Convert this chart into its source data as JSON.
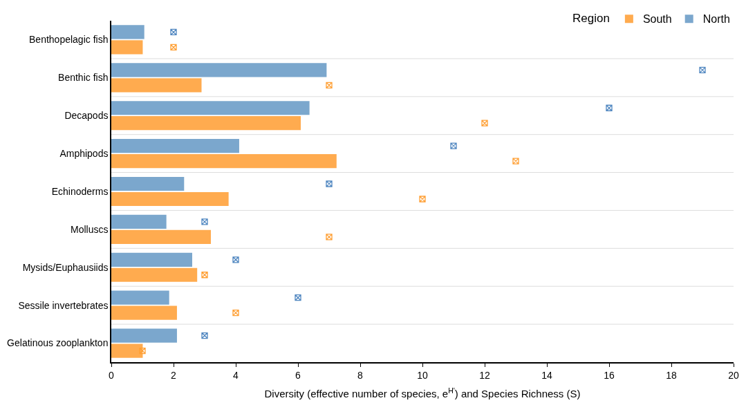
{
  "chart_data": {
    "type": "bar",
    "orientation": "horizontal",
    "xlabel": "Diversity (effective number of species, e$^{H'}$) and Species Richness (S)",
    "legend_title": "Region",
    "legend": "top right",
    "grid": "y",
    "xlim": [
      0,
      20
    ],
    "xticks": [
      0,
      2,
      4,
      6,
      8,
      10,
      12,
      14,
      16,
      18,
      20
    ],
    "categories": [
      "Benthopelagic fish",
      "Benthic fish",
      "Decapods",
      "Amphipods",
      "Echinoderms",
      "Molluscs",
      "Mysids/Euphausiids",
      "Sessile invertebrates",
      "Gelatinous zooplankton"
    ],
    "series": [
      {
        "name": "North",
        "color": "#7ba7cd",
        "values": [
          1.06,
          6.92,
          6.37,
          4.11,
          2.34,
          1.77,
          2.6,
          1.86,
          2.11
        ]
      },
      {
        "name": "South",
        "color": "#ffab4f",
        "values": [
          1.01,
          2.9,
          6.09,
          7.24,
          3.77,
          3.2,
          2.76,
          2.11,
          1.01
        ]
      },
      {
        "type": "scatter",
        "color": "#4f86c0",
        "marker": "cross",
        "values": [
          2,
          19,
          16,
          11,
          7,
          3,
          4,
          6,
          3
        ]
      },
      {
        "type": "scatter",
        "color": "#ff9f33",
        "marker": "cross",
        "values": [
          2,
          7,
          12,
          13,
          10,
          7,
          3,
          4,
          1
        ]
      }
    ]
  }
}
